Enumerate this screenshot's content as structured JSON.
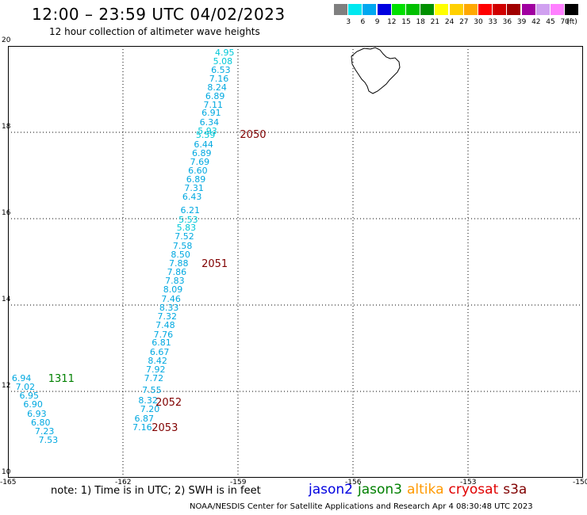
{
  "header": {
    "title": "12:00 – 23:59 UTC 04/02/2023",
    "subtitle": "12 hour collection of altimeter wave heights"
  },
  "color_scale": {
    "labels": [
      "3",
      "6",
      "9",
      "12",
      "15",
      "18",
      "21",
      "24",
      "27",
      "30",
      "33",
      "36",
      "39",
      "42",
      "45",
      "70"
    ],
    "unit": "(ft)",
    "colors": [
      "#7f7f7f",
      "#00e8f0",
      "#00a8f0",
      "#0000e0",
      "#00e000",
      "#00c000",
      "#009000",
      "#ffff00",
      "#ffd000",
      "#ffa800",
      "#ff0000",
      "#d00000",
      "#a00000",
      "#a000a0",
      "#d0a0f0",
      "#ff80ff",
      "#000000"
    ]
  },
  "map": {
    "lon_range": [
      -165,
      -150
    ],
    "lat_range": [
      10,
      20
    ],
    "x_ticks": [
      "-165",
      "-162",
      "-159",
      "-156",
      "-153",
      "-150"
    ],
    "y_ticks": [
      "20",
      "18",
      "16",
      "14",
      "12",
      "10"
    ]
  },
  "observations": [
    {
      "lon": -159.31,
      "lat": 19.85,
      "value": "4.95",
      "color": "#00c8d8"
    },
    {
      "lon": -159.36,
      "lat": 19.65,
      "value": "5.08",
      "color": "#00c8d8"
    },
    {
      "lon": -159.41,
      "lat": 19.45,
      "value": "6.53",
      "color": "#00a8e0"
    },
    {
      "lon": -159.46,
      "lat": 19.25,
      "value": "7.16",
      "color": "#00a8e0"
    },
    {
      "lon": -159.51,
      "lat": 19.05,
      "value": "8.24",
      "color": "#00a8e0"
    },
    {
      "lon": -159.56,
      "lat": 18.85,
      "value": "6.89",
      "color": "#00a8e0"
    },
    {
      "lon": -159.61,
      "lat": 18.65,
      "value": "7.11",
      "color": "#00a8e0"
    },
    {
      "lon": -159.66,
      "lat": 18.45,
      "value": "6.91",
      "color": "#00a8e0"
    },
    {
      "lon": -159.71,
      "lat": 18.24,
      "value": "6.34",
      "color": "#00a8e0"
    },
    {
      "lon": -159.76,
      "lat": 18.04,
      "value": "5.93",
      "color": "#00c8d8"
    },
    {
      "lon": -159.81,
      "lat": 17.94,
      "value": "5.59",
      "color": "#00c8d8"
    },
    {
      "lon": -159.86,
      "lat": 17.73,
      "value": "6.44",
      "color": "#00a8e0"
    },
    {
      "lon": -159.91,
      "lat": 17.53,
      "value": "6.89",
      "color": "#00a8e0"
    },
    {
      "lon": -159.96,
      "lat": 17.32,
      "value": "7.69",
      "color": "#00a8e0"
    },
    {
      "lon": -160.01,
      "lat": 17.12,
      "value": "6.60",
      "color": "#00a8e0"
    },
    {
      "lon": -160.06,
      "lat": 16.91,
      "value": "6.89",
      "color": "#00a8e0"
    },
    {
      "lon": -160.11,
      "lat": 16.71,
      "value": "7.31",
      "color": "#00a8e0"
    },
    {
      "lon": -160.16,
      "lat": 16.51,
      "value": "6.43",
      "color": "#00a8e0"
    },
    {
      "lon": -160.21,
      "lat": 16.2,
      "value": "6.21",
      "color": "#00a8e0"
    },
    {
      "lon": -160.26,
      "lat": 15.99,
      "value": "5.53",
      "color": "#00c8d8"
    },
    {
      "lon": -160.31,
      "lat": 15.79,
      "value": "5.83",
      "color": "#00c8d8"
    },
    {
      "lon": -160.36,
      "lat": 15.59,
      "value": "7.52",
      "color": "#00a8e0"
    },
    {
      "lon": -160.41,
      "lat": 15.38,
      "value": "7.58",
      "color": "#00a8e0"
    },
    {
      "lon": -160.46,
      "lat": 15.18,
      "value": "8.50",
      "color": "#00a8e0"
    },
    {
      "lon": -160.51,
      "lat": 14.97,
      "value": "7.88",
      "color": "#00a8e0"
    },
    {
      "lon": -160.56,
      "lat": 14.77,
      "value": "7.86",
      "color": "#00a8e0"
    },
    {
      "lon": -160.61,
      "lat": 14.56,
      "value": "7.83",
      "color": "#00a8e0"
    },
    {
      "lon": -160.66,
      "lat": 14.36,
      "value": "8.09",
      "color": "#00a8e0"
    },
    {
      "lon": -160.71,
      "lat": 14.15,
      "value": "7.46",
      "color": "#00a8e0"
    },
    {
      "lon": -160.76,
      "lat": 13.95,
      "value": "8.33",
      "color": "#00a8e0"
    },
    {
      "lon": -160.81,
      "lat": 13.74,
      "value": "7.32",
      "color": "#00a8e0"
    },
    {
      "lon": -160.86,
      "lat": 13.54,
      "value": "7.48",
      "color": "#00a8e0"
    },
    {
      "lon": -160.91,
      "lat": 13.33,
      "value": "7.76",
      "color": "#00a8e0"
    },
    {
      "lon": -160.96,
      "lat": 13.13,
      "value": "6.81",
      "color": "#00a8e0"
    },
    {
      "lon": -161.01,
      "lat": 12.92,
      "value": "6.67",
      "color": "#00a8e0"
    },
    {
      "lon": -161.06,
      "lat": 12.72,
      "value": "8.42",
      "color": "#00a8e0"
    },
    {
      "lon": -161.11,
      "lat": 12.51,
      "value": "7.92",
      "color": "#00a8e0"
    },
    {
      "lon": -161.16,
      "lat": 12.31,
      "value": "7.72",
      "color": "#00a8e0"
    },
    {
      "lon": -161.21,
      "lat": 12.04,
      "value": "7.55",
      "color": "#00a8e0"
    },
    {
      "lon": -161.31,
      "lat": 11.79,
      "value": "8.32",
      "color": "#00a8e0"
    },
    {
      "lon": -161.26,
      "lat": 11.59,
      "value": "7.20",
      "color": "#00a8e0"
    },
    {
      "lon": -161.41,
      "lat": 11.38,
      "value": "6.87",
      "color": "#00a8e0"
    },
    {
      "lon": -161.46,
      "lat": 11.18,
      "value": "7.16",
      "color": "#00a8e0"
    },
    {
      "lon": -164.61,
      "lat": 12.31,
      "value": "6.94",
      "color": "#00a8e0"
    },
    {
      "lon": -164.51,
      "lat": 12.11,
      "value": "7.02",
      "color": "#00a8e0"
    },
    {
      "lon": -164.41,
      "lat": 11.9,
      "value": "6.95",
      "color": "#00a8e0"
    },
    {
      "lon": -164.31,
      "lat": 11.7,
      "value": "6.90",
      "color": "#00a8e0"
    },
    {
      "lon": -164.21,
      "lat": 11.49,
      "value": "6.93",
      "color": "#00a8e0"
    },
    {
      "lon": -164.11,
      "lat": 11.29,
      "value": "6.80",
      "color": "#00a8e0"
    },
    {
      "lon": -164.01,
      "lat": 11.08,
      "value": "7.23",
      "color": "#00a8e0"
    },
    {
      "lon": -163.91,
      "lat": 10.88,
      "value": "7.53",
      "color": "#00a8e0"
    }
  ],
  "passes": [
    {
      "lon": -158.95,
      "lat": 17.95,
      "label": "2050",
      "color": "#800000"
    },
    {
      "lon": -159.95,
      "lat": 14.95,
      "label": "2051",
      "color": "#800000"
    },
    {
      "lon": -161.15,
      "lat": 11.75,
      "label": "2052",
      "color": "#800000"
    },
    {
      "lon": -161.25,
      "lat": 11.15,
      "label": "2053",
      "color": "#800000"
    },
    {
      "lon": -163.95,
      "lat": 12.3,
      "label": "1311",
      "color": "#008000"
    }
  ],
  "footer": {
    "note": "note: 1) Time is in UTC; 2) SWH is in feet",
    "legend": [
      {
        "name": "jason2",
        "color": "#0000e0"
      },
      {
        "name": "jason3",
        "color": "#008000"
      },
      {
        "name": "altika",
        "color": "#ff9900"
      },
      {
        "name": "cryosat",
        "color": "#e00000"
      },
      {
        "name": "s3a",
        "color": "#800000"
      }
    ],
    "credit": "NOAA/NESDIS Center for Satellite Applications and Research    Apr  4 08:30:48 UTC 2023"
  }
}
